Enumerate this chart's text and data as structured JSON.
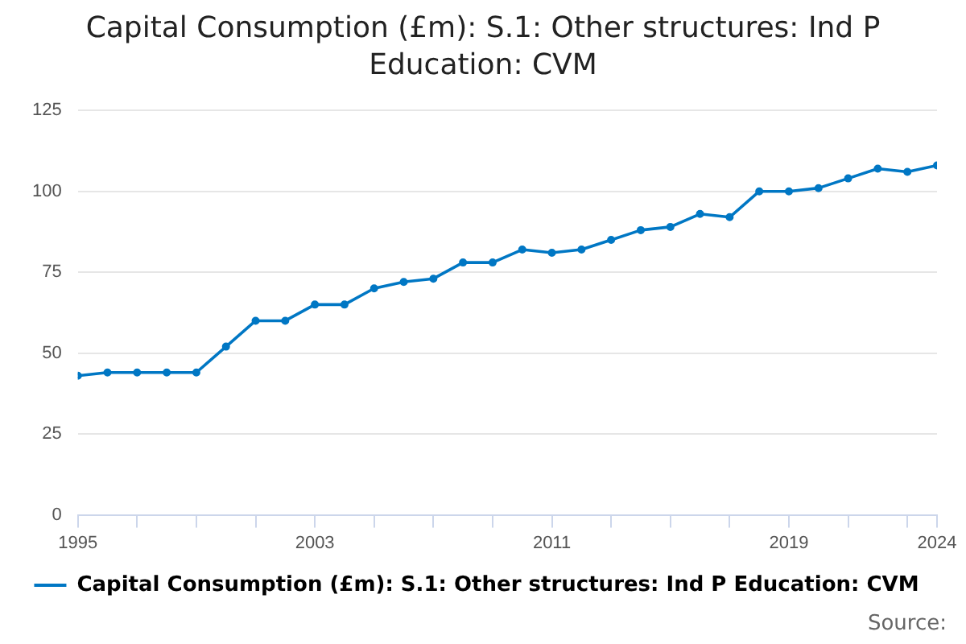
{
  "chart_data": {
    "type": "line",
    "title": "Capital Consumption (£m): S.1: Other structures: Ind P Education: CVM",
    "x": [
      1995,
      1996,
      1997,
      1998,
      1999,
      2000,
      2001,
      2002,
      2003,
      2004,
      2005,
      2006,
      2007,
      2008,
      2009,
      2010,
      2011,
      2012,
      2013,
      2014,
      2015,
      2016,
      2017,
      2018,
      2019,
      2020,
      2021,
      2022,
      2023,
      2024
    ],
    "series": [
      {
        "name": "Capital Consumption (£m): S.1: Other structures: Ind P Education: CVM",
        "color": "#0077c4",
        "values": [
          43,
          44,
          44,
          44,
          44,
          52,
          60,
          60,
          65,
          65,
          70,
          72,
          73,
          78,
          78,
          82,
          81,
          82,
          85,
          88,
          89,
          93,
          92,
          100,
          100,
          101,
          104,
          107,
          106,
          108
        ]
      }
    ],
    "xlim": [
      1995,
      2024
    ],
    "xticks": [
      1995,
      {
        "value": 1997,
        "label": null
      },
      {
        "value": 1999,
        "label": null
      },
      {
        "value": 2001,
        "label": null
      },
      2003,
      {
        "value": 2005,
        "label": null
      },
      {
        "value": 2007,
        "label": null
      },
      {
        "value": 2009,
        "label": null
      },
      2011,
      {
        "value": 2013,
        "label": null
      },
      {
        "value": 2015,
        "label": null
      },
      {
        "value": 2017,
        "label": null
      },
      2019,
      {
        "value": 2021,
        "label": null
      },
      {
        "value": 2023,
        "label": null
      },
      2024
    ],
    "ylim": [
      0,
      125
    ],
    "yticks": [
      0,
      25,
      50,
      75,
      100,
      125
    ],
    "grid": "y",
    "legend": "bottom",
    "marker": "circle",
    "line_style": "solid",
    "annotations": [
      "Source:"
    ]
  }
}
